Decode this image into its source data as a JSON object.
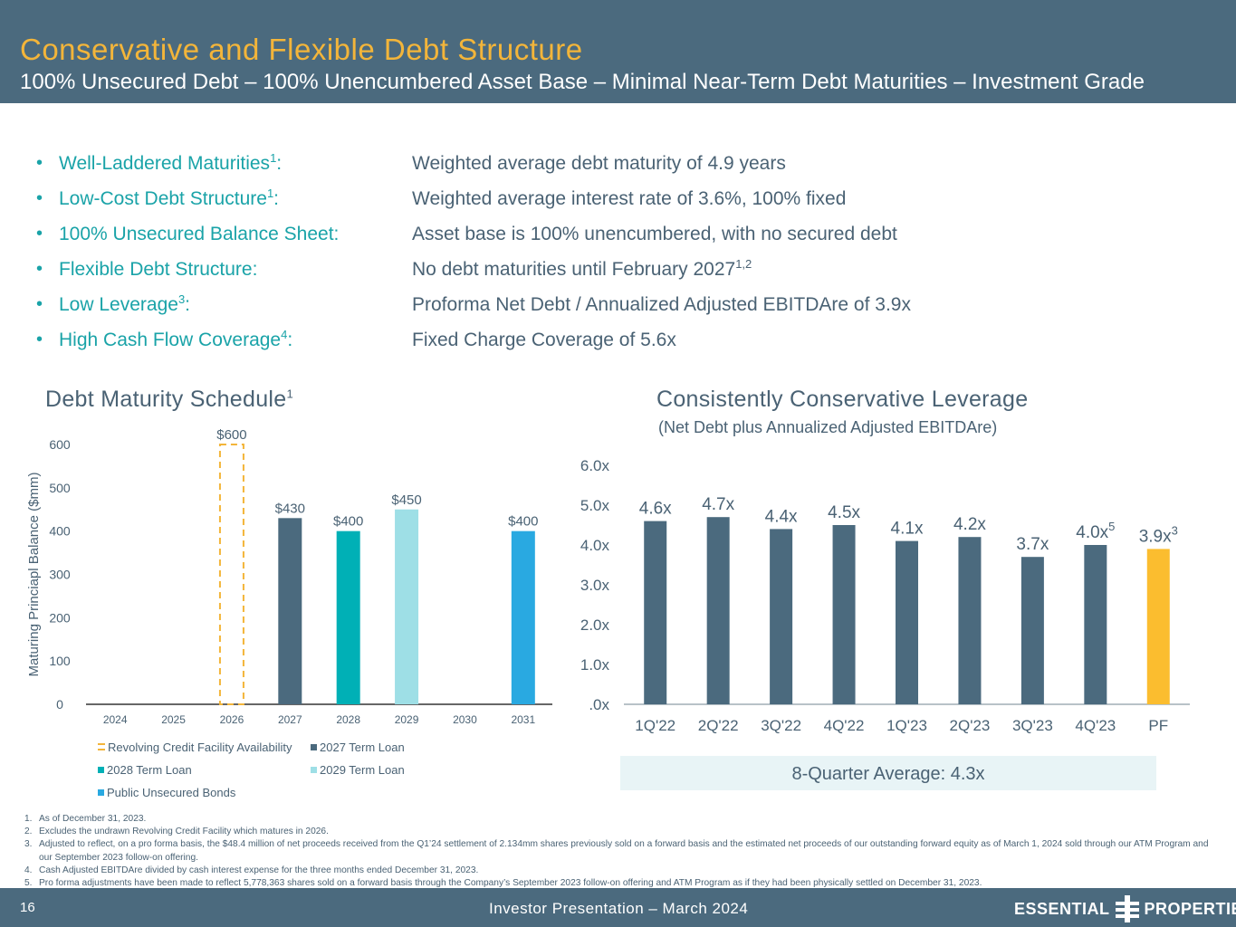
{
  "header": {
    "title": "Conservative and Flexible Debt Structure",
    "subtitle": "100% Unsecured Debt – 100% Unencumbered Asset Base – Minimal Near-Term Debt Maturities – Investment Grade"
  },
  "bullets": [
    {
      "label": "Well-Laddered Maturities",
      "sup": "1",
      "colon": ":",
      "value": "Weighted average debt maturity of 4.9 years",
      "value_sup": ""
    },
    {
      "label": "Low-Cost Debt Structure",
      "sup": "1",
      "colon": ":",
      "value": "Weighted average interest rate of 3.6%, 100% fixed",
      "value_sup": ""
    },
    {
      "label": "100% Unsecured Balance Sheet",
      "sup": "",
      "colon": ":",
      "value": "Asset base is 100% unencumbered, with no secured debt",
      "value_sup": ""
    },
    {
      "label": "Flexible Debt Structure",
      "sup": "",
      "colon": ":",
      "value": "No debt maturities until February 2027",
      "value_sup": "1,2"
    },
    {
      "label": "Low Leverage",
      "sup": "3",
      "colon": ":",
      "value": "Proforma Net Debt / Annualized Adjusted EBITDAre of 3.9x",
      "value_sup": ""
    },
    {
      "label": "High Cash Flow Coverage",
      "sup": "4",
      "colon": ":",
      "value": "Fixed Charge Coverage of 5.6x",
      "value_sup": ""
    }
  ],
  "chart_data": [
    {
      "type": "bar",
      "title": "Debt Maturity Schedule",
      "title_sup": "1",
      "ylabel": "Maturing Princiapl Balance ($mm)",
      "xlabel": "",
      "ylim": [
        0,
        600
      ],
      "yticks": [
        "0",
        "100",
        "200",
        "300",
        "400",
        "500",
        "600"
      ],
      "categories": [
        "2024",
        "2025",
        "2026",
        "2027",
        "2028",
        "2029",
        "2030",
        "2031"
      ],
      "series": [
        {
          "name": "Revolving Credit Facility Availability",
          "values": [
            0,
            0,
            600,
            0,
            0,
            0,
            0,
            0
          ],
          "labels": [
            "",
            "",
            "$600",
            "",
            "",
            "",
            "",
            ""
          ],
          "color": "#f3b53a",
          "style": "dashed"
        },
        {
          "name": "2027 Term Loan",
          "values": [
            0,
            0,
            0,
            430,
            0,
            0,
            0,
            0
          ],
          "labels": [
            "",
            "",
            "",
            "$430",
            "",
            "",
            "",
            ""
          ],
          "color": "#4b6a7e"
        },
        {
          "name": "2028 Term Loan",
          "values": [
            0,
            0,
            0,
            0,
            400,
            0,
            0,
            0
          ],
          "labels": [
            "",
            "",
            "",
            "",
            "$400",
            "",
            "",
            ""
          ],
          "color": "#00b0b6"
        },
        {
          "name": "2029 Term Loan",
          "values": [
            0,
            0,
            0,
            0,
            0,
            450,
            0,
            0
          ],
          "labels": [
            "",
            "",
            "",
            "",
            "",
            "$450",
            "",
            ""
          ],
          "color": "#9edfe6"
        },
        {
          "name": "Public Unsecured Bonds",
          "values": [
            0,
            0,
            0,
            0,
            0,
            0,
            0,
            400
          ],
          "labels": [
            "",
            "",
            "",
            "",
            "",
            "",
            "",
            "$400"
          ],
          "color": "#29a9e1"
        }
      ]
    },
    {
      "type": "bar",
      "title": "Consistently Conservative Leverage",
      "subtitle": "(Net Debt plus Annualized Adjusted EBITDAre)",
      "xlabel": "",
      "ylabel": "",
      "ylim": [
        0,
        6
      ],
      "yticks": [
        ".0x",
        "1.0x",
        "2.0x",
        "3.0x",
        "4.0x",
        "5.0x",
        "6.0x"
      ],
      "categories": [
        "1Q'22",
        "2Q'22",
        "3Q'22",
        "4Q'22",
        "1Q'23",
        "2Q'23",
        "3Q'23",
        "4Q'23",
        "PF"
      ],
      "values": [
        4.6,
        4.7,
        4.4,
        4.5,
        4.1,
        4.2,
        3.7,
        4.0,
        3.9
      ],
      "labels": [
        "4.6x",
        "4.7x",
        "4.4x",
        "4.5x",
        "4.1x",
        "4.2x",
        "3.7x",
        "4.0x",
        "3.9x"
      ],
      "label_sups": [
        "",
        "",
        "",
        "",
        "",
        "",
        "",
        "5",
        "3"
      ],
      "colors": [
        "#4b6a7e",
        "#4b6a7e",
        "#4b6a7e",
        "#4b6a7e",
        "#4b6a7e",
        "#4b6a7e",
        "#4b6a7e",
        "#4b6a7e",
        "#fbbd2f"
      ],
      "average_label": "8-Quarter Average: 4.3x"
    }
  ],
  "footnotes": [
    {
      "n": "1.",
      "text": "As of December 31, 2023."
    },
    {
      "n": "2.",
      "text": "Excludes the undrawn Revolving Credit Facility which matures in 2026."
    },
    {
      "n": "3.",
      "text": "Adjusted to reflect, on a pro forma basis, the $48.4 million of net proceeds received from the Q1’24 settlement of 2.134mm shares previously sold on a forward basis and the estimated net proceeds of our outstanding forward equity as of March 1, 2024 sold through our ATM Program and our September 2023 follow-on offering."
    },
    {
      "n": "4.",
      "text": "Cash Adjusted EBITDAre divided by cash interest expense for the three months ended December 31, 2023."
    },
    {
      "n": "5.",
      "text": "Pro forma adjustments have been made to reflect 5,778,363 shares sold on a forward basis through the Company’s September 2023 follow-on offering and ATM Program as if they had been physically settled on December 31, 2023."
    }
  ],
  "footer": {
    "page": "16",
    "presentation": "Investor Presentation – March 2024",
    "logo_left": "ESSENTIAL",
    "logo_right": "PROPERTIES"
  }
}
